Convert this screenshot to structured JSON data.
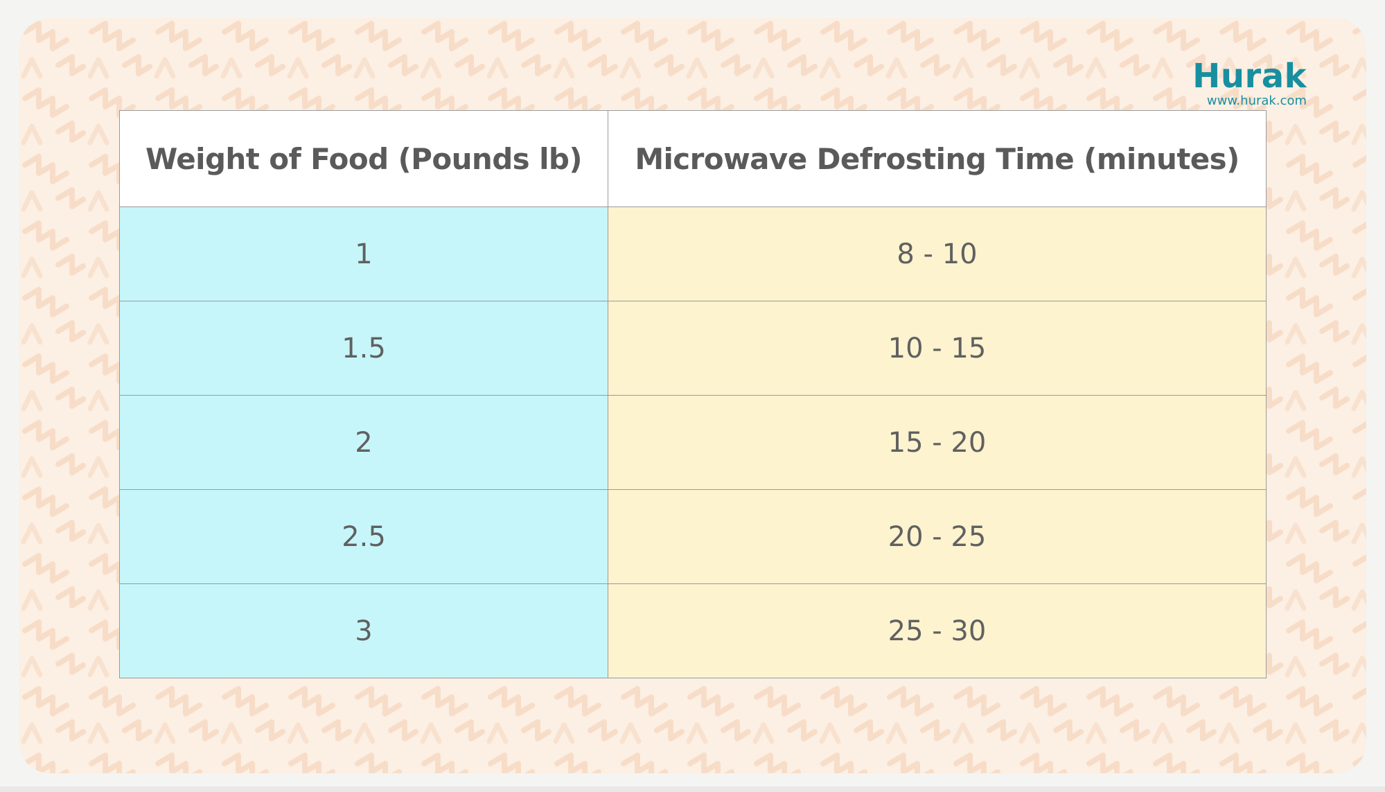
{
  "brand": {
    "name": "Hurak",
    "url": "www.hurak.com"
  },
  "table": {
    "headers": [
      "Weight of Food (Pounds lb)",
      "Microwave Defrosting Time (minutes)"
    ],
    "rows": [
      [
        "1",
        "8 - 10"
      ],
      [
        "1.5",
        "10 - 15"
      ],
      [
        "2",
        "15 - 20"
      ],
      [
        "2.5",
        "20 - 25"
      ],
      [
        "3",
        "25 - 30"
      ]
    ]
  },
  "colors": {
    "brand": "#178fa0",
    "weight_column_fill": "#c6f6fa",
    "time_column_fill": "#fdf3cf",
    "header_fill": "#ffffff",
    "card_background": "#fcefe3"
  }
}
